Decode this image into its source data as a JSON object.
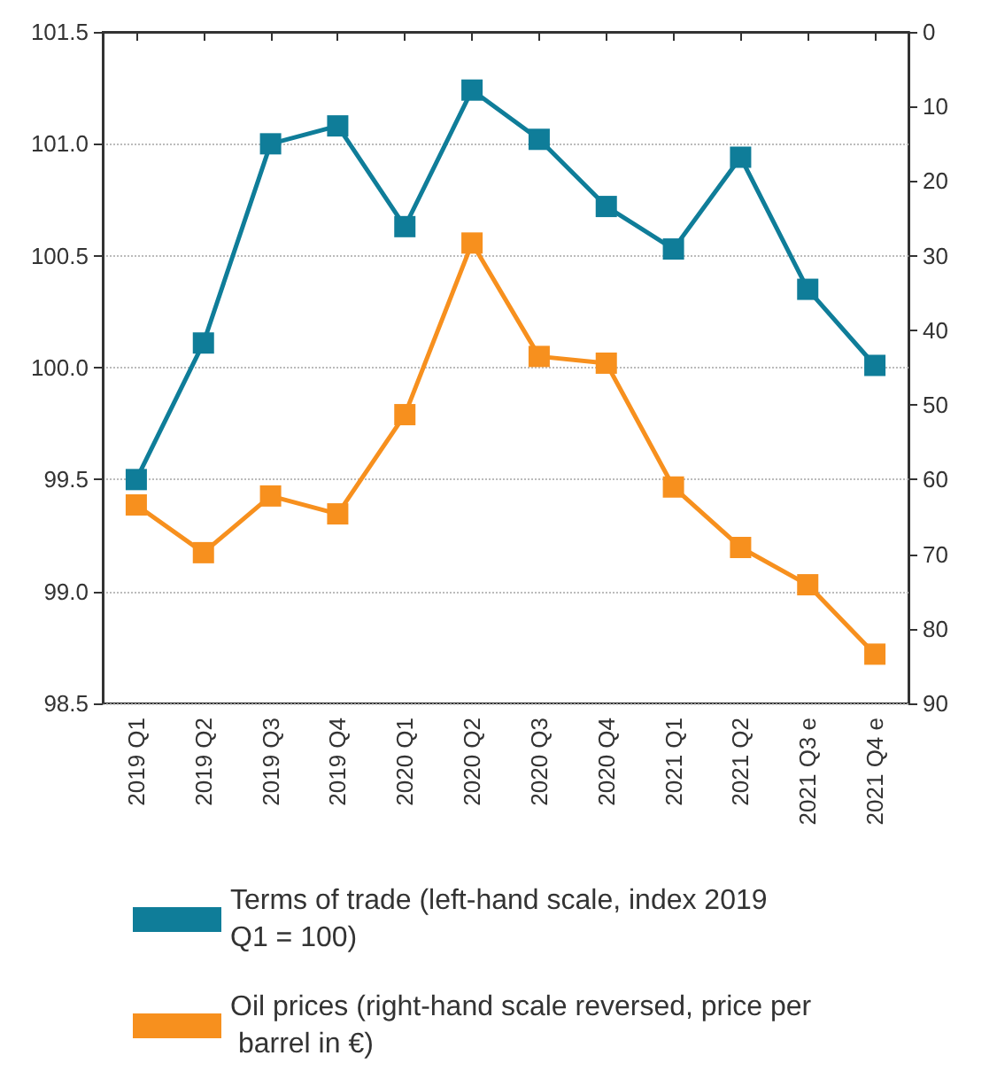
{
  "chart_data": {
    "type": "line",
    "categories": [
      "2019 Q1",
      "2019 Q2",
      "2019 Q3",
      "2019 Q4",
      "2020 Q1",
      "2020 Q2",
      "2020 Q3",
      "2020 Q4",
      "2021 Q1",
      "2021 Q2",
      "2021 Q3 e",
      "2021 Q4 e"
    ],
    "series": [
      {
        "name": "Terms of trade (left-hand scale, index 2019 Q1 = 100)",
        "color": "#0f7d99",
        "values": [
          99.5,
          100.11,
          101.0,
          101.08,
          100.63,
          101.24,
          101.02,
          100.72,
          100.53,
          100.94,
          100.35,
          100.01
        ]
      },
      {
        "name": "Oil prices (right-hand scale reversed, price per barrel in €)",
        "color": "#f7901e",
        "axis": "y2",
        "values": [
          63.4,
          69.8,
          62.2,
          64.6,
          51.3,
          28.3,
          43.5,
          44.4,
          61.0,
          69.1,
          74.1,
          83.4
        ]
      }
    ],
    "ylim": [
      98.5,
      101.5
    ],
    "yticks": [
      98.5,
      {
        "value": 99,
        "label": "99.0"
      },
      99.5,
      {
        "value": 100,
        "label": "100.0"
      },
      100.5,
      {
        "value": 101,
        "label": "101.0"
      },
      101.5
    ],
    "y2lim": [
      90,
      0
    ],
    "y2ticks": [
      0,
      10,
      20,
      30,
      40,
      50,
      60,
      70,
      80,
      90
    ],
    "grid": "y",
    "legend": "bottom",
    "marker": "square",
    "line_style": "solid"
  }
}
